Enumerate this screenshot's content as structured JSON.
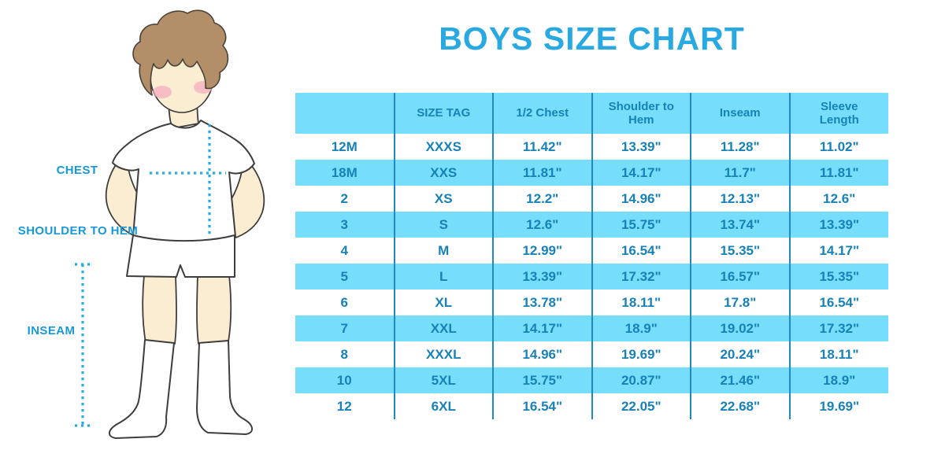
{
  "title": "BOYS SIZE CHART",
  "labels": {
    "chest": "CHEST",
    "shoulder_to_hem": "SHOULDER TO HEM",
    "inseam": "INSEAM"
  },
  "illustration": {
    "description": "cartoon boy in white t-shirt, shorts and socks with dotted measurement lines"
  },
  "colors": {
    "title_blue": "#29a9e1",
    "label_blue": "#1899d6",
    "dotted_line_blue": "#29abe2",
    "table_row_fill": "#76defa",
    "table_divider": "#2089be",
    "table_text": "#1781b8",
    "hair_brown": "#b28e69",
    "skin": "#fbedd2",
    "blush_pink": "#f4a9bd"
  },
  "chart_data": {
    "type": "table",
    "title": "BOYS SIZE CHART",
    "columns": [
      "",
      "SIZE TAG",
      "1/2 Chest",
      "Shoulder to Hem",
      "Inseam",
      "Sleeve Length"
    ],
    "rows": [
      [
        "12M",
        "XXXS",
        "11.42\"",
        "13.39\"",
        "11.28\"",
        "11.02\""
      ],
      [
        "18M",
        "XXS",
        "11.81\"",
        "14.17\"",
        "11.7\"",
        "11.81\""
      ],
      [
        "2",
        "XS",
        "12.2\"",
        "14.96\"",
        "12.13\"",
        "12.6\""
      ],
      [
        "3",
        "S",
        "12.6\"",
        "15.75\"",
        "13.74\"",
        "13.39\""
      ],
      [
        "4",
        "M",
        "12.99\"",
        "16.54\"",
        "15.35\"",
        "14.17\""
      ],
      [
        "5",
        "L",
        "13.39\"",
        "17.32\"",
        "16.57\"",
        "15.35\""
      ],
      [
        "6",
        "XL",
        "13.78\"",
        "18.11\"",
        "17.8\"",
        "16.54\""
      ],
      [
        "7",
        "XXL",
        "14.17\"",
        "18.9\"",
        "19.02\"",
        "17.32\""
      ],
      [
        "8",
        "XXXL",
        "14.96\"",
        "19.69\"",
        "20.24\"",
        "18.11\""
      ],
      [
        "10",
        "5XL",
        "15.75\"",
        "20.87\"",
        "21.46\"",
        "18.9\""
      ],
      [
        "12",
        "6XL",
        "16.54\"",
        "22.05\"",
        "22.68\"",
        "19.69\""
      ]
    ]
  }
}
